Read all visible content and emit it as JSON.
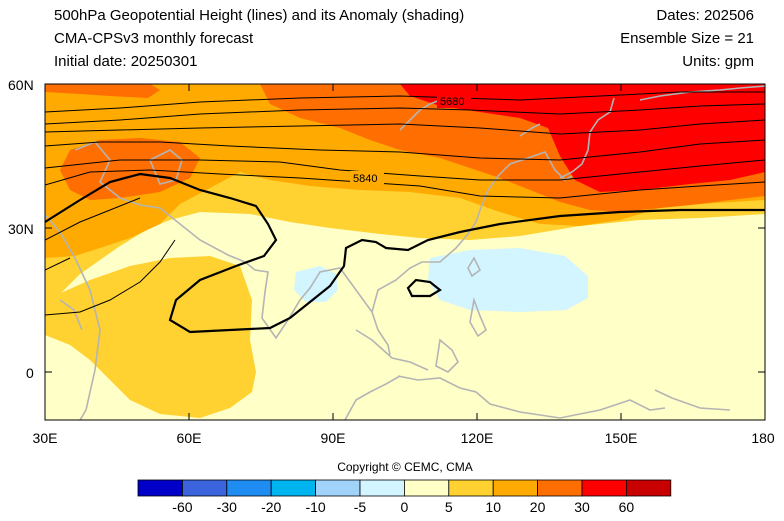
{
  "header": {
    "title_line1": "500hPa Geopotential Height (lines) and its Anomaly (shading)",
    "title_line2": "CMA-CPSv3 monthly forecast",
    "title_line3": "Initial date: 20250301",
    "dates": "Dates: 202506",
    "ensemble": "Ensemble Size = 21",
    "units": "Units: gpm"
  },
  "map": {
    "lat_labels": [
      "60N",
      "30N",
      "0"
    ],
    "lon_labels": [
      "30E",
      "60E",
      "90E",
      "120E",
      "150E",
      "180"
    ],
    "contour_labels": [
      "5680",
      "5840"
    ]
  },
  "copyright": "Copyright © CEMC, CMA",
  "colorbar": {
    "labels": [
      "-60",
      "-30",
      "-20",
      "-10",
      "-5",
      "0",
      "5",
      "10",
      "20",
      "30",
      "60"
    ],
    "colors": [
      "#0000c8",
      "#3c64dc",
      "#1e8cf0",
      "#00b4f0",
      "#a0d2fa",
      "#d2f5ff",
      "#ffffc8",
      "#ffd232",
      "#ffaa00",
      "#ff6e00",
      "#ff0000",
      "#c80000"
    ]
  }
}
